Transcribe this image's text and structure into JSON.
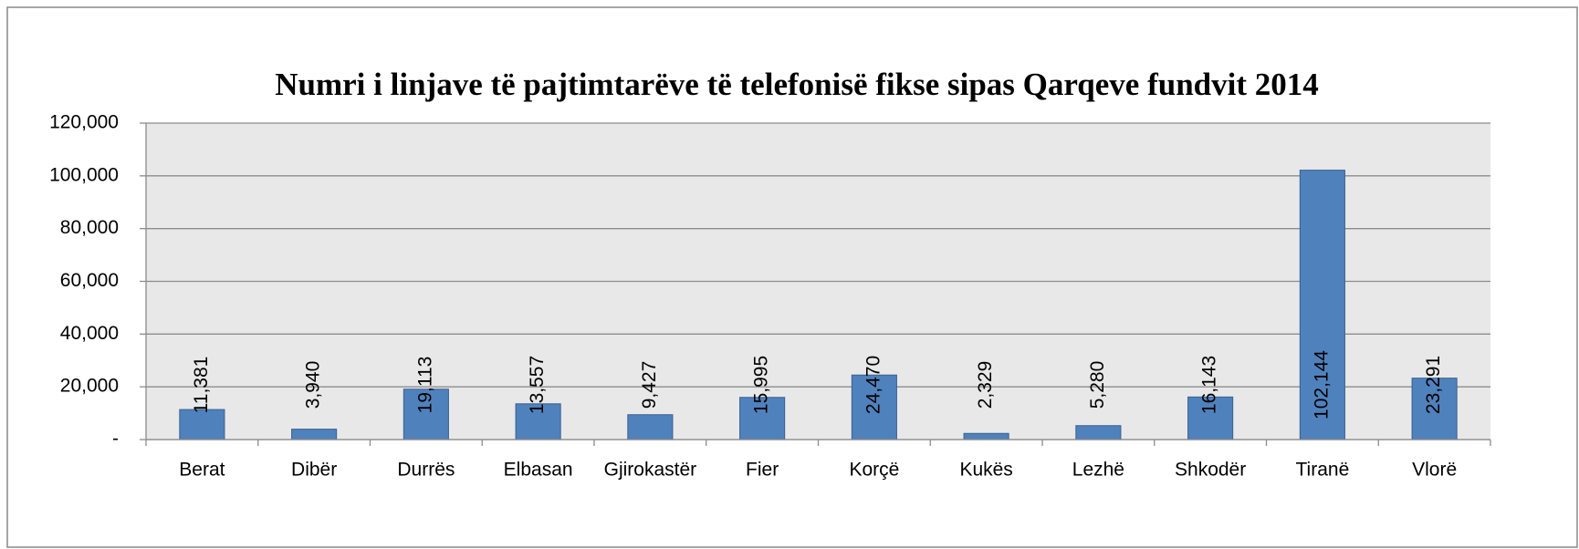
{
  "chart_data": {
    "type": "bar",
    "title": "Numri  i linjave të pajtimtarëve të telefonisë fikse sipas Qarqeve  fundvit 2014",
    "categories": [
      "Berat",
      "Dibër",
      "Durrës",
      "Elbasan",
      "Gjirokastër",
      "Fier",
      "Korçë",
      "Kukës",
      "Lezhë",
      "Shkodër",
      "Tiranë",
      "Vlorë"
    ],
    "values": [
      11381,
      3940,
      19113,
      13557,
      9427,
      15995,
      24470,
      2329,
      5280,
      16143,
      102144,
      23291
    ],
    "value_labels": [
      "11,381",
      "3,940",
      "19,113",
      "13,557",
      "9,427",
      "15,995",
      "24,470",
      "2,329",
      "5,280",
      "16,143",
      "102,144",
      "23,291"
    ],
    "color": "#4f81bd",
    "ylim": [
      0,
      120000
    ],
    "yticks": [
      {
        "value": 0,
        "label": "-"
      },
      {
        "value": 20000,
        "label": "20,000"
      },
      {
        "value": 40000,
        "label": "40,000"
      },
      {
        "value": 60000,
        "label": "60,000"
      },
      {
        "value": 80000,
        "label": "80,000"
      },
      {
        "value": 100000,
        "label": "100,000"
      },
      {
        "value": 120000,
        "label": "120,000"
      }
    ],
    "grid": true
  }
}
